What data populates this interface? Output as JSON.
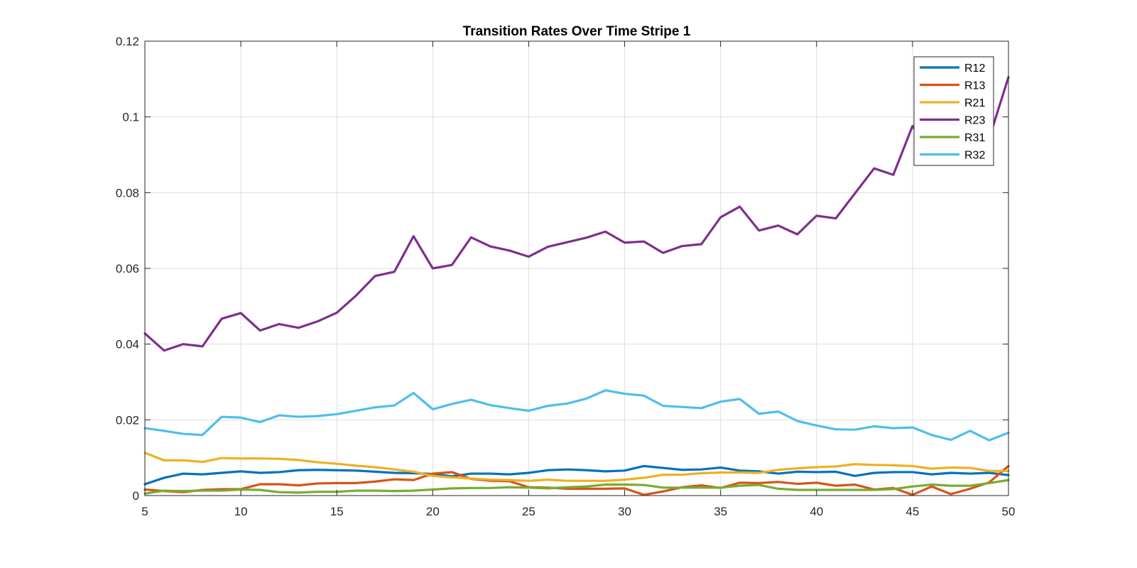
{
  "chart_data": {
    "type": "line",
    "title": "Transition Rates Over Time Stripe 1",
    "xlabel": "",
    "ylabel": "",
    "xlim": [
      5,
      50
    ],
    "ylim": [
      0,
      0.12
    ],
    "xticks": [
      5,
      10,
      15,
      20,
      25,
      30,
      35,
      40,
      45,
      50
    ],
    "yticks": [
      0,
      0.02,
      0.04,
      0.06,
      0.08,
      0.1,
      0.12
    ],
    "xtick_labels": [
      "5",
      "10",
      "15",
      "20",
      "25",
      "30",
      "35",
      "40",
      "45",
      "50"
    ],
    "ytick_labels": [
      "0",
      "0.02",
      "0.04",
      "0.06",
      "0.08",
      "0.1",
      "0.12"
    ],
    "grid": true,
    "legend_position": "top-right",
    "x": [
      5,
      6,
      7,
      8,
      9,
      10,
      11,
      12,
      13,
      14,
      15,
      16,
      17,
      18,
      19,
      20,
      21,
      22,
      23,
      24,
      25,
      26,
      27,
      28,
      29,
      30,
      31,
      32,
      33,
      34,
      35,
      36,
      37,
      38,
      39,
      40,
      41,
      42,
      43,
      44,
      45,
      46,
      47,
      48,
      49,
      50
    ],
    "series": [
      {
        "name": "R12",
        "color": "#0072BD",
        "values": [
          0.003,
          0.0047,
          0.0058,
          0.0056,
          0.006,
          0.0064,
          0.006,
          0.0062,
          0.0067,
          0.0068,
          0.0067,
          0.0066,
          0.0063,
          0.006,
          0.0059,
          0.0057,
          0.0051,
          0.0058,
          0.0058,
          0.0056,
          0.006,
          0.0067,
          0.0069,
          0.0067,
          0.0064,
          0.0066,
          0.0078,
          0.0073,
          0.0068,
          0.0069,
          0.0074,
          0.0066,
          0.0064,
          0.0058,
          0.0063,
          0.0062,
          0.0063,
          0.0052,
          0.006,
          0.0062,
          0.0062,
          0.0056,
          0.006,
          0.0058,
          0.006,
          0.0054
        ]
      },
      {
        "name": "R13",
        "color": "#D95319",
        "values": [
          0.0016,
          0.0012,
          0.0009,
          0.0015,
          0.0017,
          0.0017,
          0.003,
          0.003,
          0.0027,
          0.0032,
          0.0033,
          0.0033,
          0.0037,
          0.0043,
          0.0041,
          0.0058,
          0.0062,
          0.0044,
          0.0039,
          0.0038,
          0.0022,
          0.0021,
          0.0018,
          0.0018,
          0.0018,
          0.0019,
          0.0002,
          0.0011,
          0.0022,
          0.0027,
          0.002,
          0.0034,
          0.0033,
          0.0036,
          0.0031,
          0.0034,
          0.0026,
          0.0029,
          0.0016,
          0.002,
          0.0002,
          0.0024,
          0.0004,
          0.0018,
          0.0035,
          0.0078
        ]
      },
      {
        "name": "R21",
        "color": "#EDB120",
        "values": [
          0.0113,
          0.0093,
          0.0093,
          0.0089,
          0.0099,
          0.0098,
          0.0098,
          0.0097,
          0.0094,
          0.0088,
          0.0084,
          0.0079,
          0.0075,
          0.0069,
          0.0063,
          0.0052,
          0.0048,
          0.0045,
          0.0042,
          0.0041,
          0.0039,
          0.0042,
          0.0039,
          0.0039,
          0.0039,
          0.0042,
          0.0047,
          0.0055,
          0.0055,
          0.0059,
          0.0061,
          0.0061,
          0.006,
          0.0068,
          0.0072,
          0.0075,
          0.0077,
          0.0083,
          0.0081,
          0.008,
          0.0078,
          0.0071,
          0.0074,
          0.0073,
          0.0065,
          0.0065
        ]
      },
      {
        "name": "R23",
        "color": "#7E2F8E",
        "values": [
          0.0428,
          0.0383,
          0.04,
          0.0394,
          0.0467,
          0.0482,
          0.0436,
          0.0453,
          0.0443,
          0.046,
          0.0483,
          0.0528,
          0.058,
          0.0591,
          0.0685,
          0.06,
          0.0609,
          0.0682,
          0.0658,
          0.0647,
          0.0631,
          0.0657,
          0.0669,
          0.0681,
          0.0697,
          0.0668,
          0.0671,
          0.0641,
          0.0659,
          0.0664,
          0.0735,
          0.0763,
          0.07,
          0.0713,
          0.069,
          0.0739,
          0.0732,
          0.0798,
          0.0864,
          0.0847,
          0.0976,
          0.0901,
          0.0938,
          0.0904,
          0.0944,
          0.1105
        ]
      },
      {
        "name": "R31",
        "color": "#77AC30",
        "values": [
          0.0005,
          0.0013,
          0.0012,
          0.0013,
          0.0013,
          0.0016,
          0.0015,
          0.0009,
          0.0008,
          0.001,
          0.001,
          0.0013,
          0.0013,
          0.0012,
          0.0013,
          0.0016,
          0.0019,
          0.002,
          0.002,
          0.0022,
          0.0021,
          0.0019,
          0.0022,
          0.0024,
          0.0029,
          0.0029,
          0.0028,
          0.0021,
          0.0021,
          0.0021,
          0.0021,
          0.0026,
          0.0028,
          0.0018,
          0.0015,
          0.0015,
          0.0015,
          0.0015,
          0.0015,
          0.0017,
          0.0024,
          0.0029,
          0.0026,
          0.0026,
          0.0033,
          0.0041
        ]
      },
      {
        "name": "R32",
        "color": "#4DBEEE",
        "values": [
          0.0178,
          0.0171,
          0.0163,
          0.016,
          0.0208,
          0.0206,
          0.0194,
          0.0212,
          0.0208,
          0.021,
          0.0215,
          0.0224,
          0.0233,
          0.0238,
          0.0271,
          0.0228,
          0.0242,
          0.0253,
          0.0239,
          0.0231,
          0.0224,
          0.0237,
          0.0243,
          0.0256,
          0.0278,
          0.0269,
          0.0264,
          0.0237,
          0.0234,
          0.0231,
          0.0248,
          0.0255,
          0.0216,
          0.0222,
          0.0197,
          0.0185,
          0.0175,
          0.0174,
          0.0183,
          0.0178,
          0.018,
          0.016,
          0.0147,
          0.0171,
          0.0146,
          0.0166
        ]
      }
    ]
  }
}
